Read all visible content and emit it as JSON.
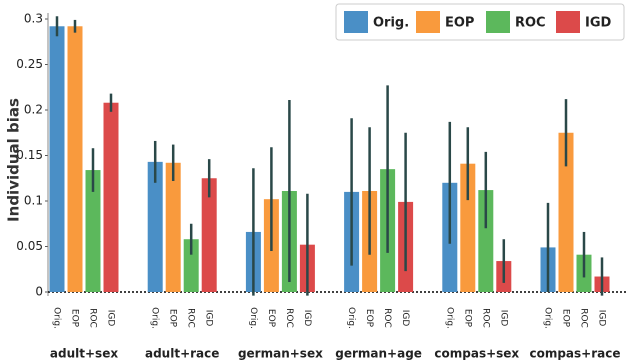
{
  "chart_data": {
    "type": "bar",
    "y_label": "Individual bias",
    "categories": [
      "adult+sex",
      "adult+race",
      "german+sex",
      "german+age",
      "compas+sex",
      "compas+race"
    ],
    "series": [
      {
        "name": "Orig.",
        "color": "#4a8fc6",
        "values": [
          0.292,
          0.143,
          0.066,
          0.11,
          0.12,
          0.049
        ],
        "errors": [
          0.011,
          0.023,
          0.07,
          0.081,
          0.067,
          0.049
        ]
      },
      {
        "name": "EOP",
        "color": "#f99a3d",
        "values": [
          0.292,
          0.142,
          0.102,
          0.111,
          0.141,
          0.175
        ],
        "errors": [
          0.007,
          0.02,
          0.057,
          0.07,
          0.04,
          0.037
        ]
      },
      {
        "name": "ROC",
        "color": "#5cb85c",
        "values": [
          0.134,
          0.058,
          0.111,
          0.135,
          0.112,
          0.041
        ],
        "errors": [
          0.024,
          0.017,
          0.1,
          0.092,
          0.042,
          0.025
        ]
      },
      {
        "name": "IGD",
        "color": "#dc4a4a",
        "values": [
          0.208,
          0.125,
          0.052,
          0.099,
          0.034,
          0.017
        ],
        "errors": [
          0.01,
          0.021,
          0.056,
          0.076,
          0.024,
          0.021
        ]
      }
    ],
    "error_color": "#2a4848",
    "ylim": [
      0,
      0.3
    ],
    "yticks": [
      0,
      0.05,
      0.1,
      0.15,
      0.2,
      0.25,
      0.3
    ],
    "legend": "upper right"
  }
}
